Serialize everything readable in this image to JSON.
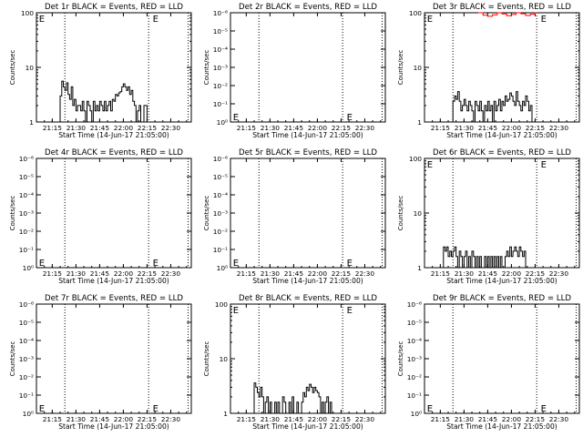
{
  "figure": {
    "background": "#ffffff",
    "ink_color": "#000000",
    "lld_color": "#ff0000"
  },
  "chart_data": [
    {
      "type": "line",
      "title": "Det 1r BLACK = Events, RED = LLD",
      "xlabel": "Start Time (14-Jun-17 21:05:00)",
      "ylabel": "Counts/sec",
      "yscale": "log",
      "ylim": [
        1,
        100
      ],
      "ytick_labels": [
        "1",
        "10",
        "100"
      ],
      "xlim": [
        "21:05",
        "22:43"
      ],
      "xtick_labels": [
        "21:15",
        "21:30",
        "21:45",
        "22:00",
        "22:15",
        "22:30"
      ],
      "markers": [
        {
          "label": "E",
          "x": "21:06"
        },
        {
          "label": "E",
          "x": "22:18"
        }
      ],
      "vlines": [
        "21:23",
        "22:16",
        "22:41"
      ],
      "series": [
        {
          "color": "#000000",
          "x": [
            "21:19",
            "21:20",
            "21:21",
            "21:22",
            "21:23",
            "21:24",
            "21:25",
            "21:26",
            "21:27",
            "21:28",
            "21:29",
            "21:30",
            "21:31",
            "21:32",
            "21:33",
            "21:34",
            "21:35",
            "21:36",
            "21:37",
            "21:38",
            "21:39",
            "21:40",
            "21:41",
            "21:42",
            "21:43",
            "21:44",
            "21:45",
            "21:46",
            "21:47",
            "21:48",
            "21:49",
            "21:50",
            "21:51",
            "21:52",
            "21:53",
            "21:54",
            "21:55",
            "21:56",
            "21:57",
            "21:58",
            "21:59",
            "22:00",
            "22:01",
            "22:02",
            "22:03",
            "22:04",
            "22:05",
            "22:06",
            "22:07",
            "22:08",
            "22:09",
            "22:10",
            "22:11",
            "22:12",
            "22:13",
            "22:14",
            "22:15",
            "22:16"
          ],
          "y": [
            1,
            3,
            5.6,
            4.4,
            3.8,
            5.2,
            3.2,
            2.6,
            4.4,
            2,
            2.6,
            1.6,
            2,
            2,
            1.6,
            2.4,
            1.6,
            1,
            2.4,
            2,
            1.6,
            1,
            2.4,
            1.6,
            2,
            1.6,
            2.4,
            2,
            1.6,
            2.4,
            1.6,
            2,
            2.4,
            1.6,
            2.6,
            2.4,
            3.2,
            3,
            3.4,
            3.6,
            4.4,
            5,
            4.4,
            3.8,
            4.4,
            3.2,
            3.8,
            2.4,
            2,
            1,
            1.6,
            2,
            1,
            1,
            2,
            2,
            1,
            1
          ]
        }
      ]
    },
    {
      "type": "line",
      "title": "Det 2r BLACK = Events, RED = LLD",
      "xlabel": "Start Time (14-Jun-17 21:05:00)",
      "ylabel": "Counts/sec",
      "yscale": "log",
      "ylim": [
        1,
        1e-06
      ],
      "ytick_labels": [
        "10⁰",
        "10⁻¹",
        "10⁻²",
        "10⁻³",
        "10⁻⁴",
        "10⁻⁵",
        "10⁻⁶"
      ],
      "xlim": [
        "21:05",
        "22:43"
      ],
      "xtick_labels": [
        "21:15",
        "21:30",
        "21:45",
        "22:00",
        "22:15",
        "22:30"
      ],
      "markers": [
        {
          "label": "E",
          "x": "21:06"
        },
        {
          "label": "E",
          "x": "22:18"
        }
      ],
      "vlines": [
        "21:23",
        "22:16",
        "22:41"
      ],
      "series": []
    },
    {
      "type": "line",
      "title": "Det 3r BLACK = Events, RED = LLD",
      "xlabel": "Start Time (14-Jun-17 21:05:00)",
      "ylabel": "Counts/sec",
      "yscale": "log",
      "ylim": [
        1,
        100
      ],
      "ytick_labels": [
        "1",
        "10",
        "100"
      ],
      "xlim": [
        "21:05",
        "22:43"
      ],
      "xtick_labels": [
        "21:15",
        "21:30",
        "21:45",
        "22:00",
        "22:15",
        "22:30"
      ],
      "markers": [
        {
          "label": "E",
          "x": "21:06"
        },
        {
          "label": "E",
          "x": "22:18"
        }
      ],
      "vlines": [
        "21:23",
        "22:16",
        "22:41"
      ],
      "series": [
        {
          "color": "#000000",
          "x": [
            "21:22",
            "21:23",
            "21:24",
            "21:25",
            "21:26",
            "21:27",
            "21:28",
            "21:29",
            "21:30",
            "21:31",
            "21:32",
            "21:33",
            "21:34",
            "21:35",
            "21:36",
            "21:37",
            "21:38",
            "21:39",
            "21:40",
            "21:41",
            "21:42",
            "21:43",
            "21:44",
            "21:45",
            "21:46",
            "21:47",
            "21:48",
            "21:49",
            "21:50",
            "21:51",
            "21:52",
            "21:53",
            "21:54",
            "21:55",
            "21:56",
            "21:57",
            "21:58",
            "21:59",
            "22:00",
            "22:01",
            "22:02",
            "22:03",
            "22:04",
            "22:05",
            "22:06",
            "22:07",
            "22:08",
            "22:09",
            "22:10",
            "22:11",
            "22:12",
            "22:13"
          ],
          "y": [
            1,
            2.4,
            3,
            2.6,
            3.6,
            2.4,
            1.6,
            2,
            2.6,
            2,
            1.6,
            2.4,
            2,
            1.6,
            1,
            2.4,
            2,
            1.6,
            2.4,
            1.6,
            1,
            2,
            1.6,
            2.4,
            1.6,
            2,
            1,
            2.4,
            1.6,
            2,
            2.6,
            1.6,
            2.4,
            2,
            3,
            2.4,
            2.6,
            3.4,
            3,
            2.4,
            2,
            3.6,
            2.4,
            2,
            1.6,
            2.4,
            2,
            3,
            2.4,
            1.6,
            2,
            1
          ]
        },
        {
          "color": "#ff0000",
          "x": [
            "21:39",
            "21:42",
            "21:45",
            "21:48",
            "21:51",
            "21:54",
            "21:57",
            "22:00",
            "22:03",
            "22:06",
            "22:09",
            "22:12",
            "22:15",
            "22:16"
          ],
          "y": [
            100,
            90,
            86,
            92,
            100,
            95,
            88,
            93,
            100,
            96,
            89,
            94,
            100,
            97
          ]
        }
      ]
    },
    {
      "type": "line",
      "title": "Det 4r BLACK = Events, RED = LLD",
      "xlabel": "Start Time (14-Jun-17 21:05:00)",
      "ylabel": "Counts/sec",
      "yscale": "log",
      "ylim": [
        1,
        1e-06
      ],
      "ytick_labels": [
        "10⁰",
        "10⁻¹",
        "10⁻²",
        "10⁻³",
        "10⁻⁴",
        "10⁻⁵",
        "10⁻⁶"
      ],
      "xlim": [
        "21:05",
        "22:43"
      ],
      "xtick_labels": [
        "21:15",
        "21:30",
        "21:45",
        "22:00",
        "22:15",
        "22:30"
      ],
      "markers": [
        {
          "label": "E",
          "x": "21:06"
        },
        {
          "label": "E",
          "x": "22:18"
        }
      ],
      "vlines": [
        "21:23",
        "22:16",
        "22:41"
      ],
      "series": []
    },
    {
      "type": "line",
      "title": "Det 5r BLACK = Events, RED = LLD",
      "xlabel": "Start Time (14-Jun-17 21:05:00)",
      "ylabel": "Counts/sec",
      "yscale": "log",
      "ylim": [
        1,
        1e-06
      ],
      "ytick_labels": [
        "10⁰",
        "10⁻¹",
        "10⁻²",
        "10⁻³",
        "10⁻⁴",
        "10⁻⁵",
        "10⁻⁶"
      ],
      "xlim": [
        "21:05",
        "22:43"
      ],
      "xtick_labels": [
        "21:15",
        "21:30",
        "21:45",
        "22:00",
        "22:15",
        "22:30"
      ],
      "markers": [
        {
          "label": "E",
          "x": "21:06"
        },
        {
          "label": "E",
          "x": "22:18"
        }
      ],
      "vlines": [
        "21:23",
        "22:16",
        "22:41"
      ],
      "series": []
    },
    {
      "type": "line",
      "title": "Det 6r BLACK = Events, RED = LLD",
      "xlabel": "Start Time (14-Jun-17 21:05:00)",
      "ylabel": "Counts/sec",
      "yscale": "log",
      "ylim": [
        1,
        100
      ],
      "ytick_labels": [
        "1",
        "10",
        "100"
      ],
      "xlim": [
        "21:05",
        "22:43"
      ],
      "xtick_labels": [
        "21:15",
        "21:30",
        "21:45",
        "22:00",
        "22:15",
        "22:30"
      ],
      "markers": [
        {
          "label": "E",
          "x": "21:06"
        },
        {
          "label": "E",
          "x": "22:18"
        }
      ],
      "vlines": [
        "21:23",
        "22:16",
        "22:41"
      ],
      "series": [
        {
          "color": "#000000",
          "x": [
            "21:16",
            "21:17",
            "21:18",
            "21:19",
            "21:20",
            "21:21",
            "21:22",
            "21:23",
            "21:24",
            "21:25",
            "21:26",
            "21:27",
            "21:28",
            "21:29",
            "21:30",
            "21:31",
            "21:32",
            "21:33",
            "21:34",
            "21:35",
            "21:36",
            "21:37",
            "21:38",
            "21:39",
            "21:40",
            "21:41",
            "21:42",
            "21:43",
            "21:44",
            "21:45",
            "21:46",
            "21:47",
            "21:48",
            "21:49",
            "21:50",
            "21:51",
            "21:52",
            "21:53",
            "21:54",
            "21:55",
            "21:56",
            "21:57",
            "21:58",
            "21:59",
            "22:00",
            "22:01",
            "22:02",
            "22:03",
            "22:04",
            "22:05",
            "22:06",
            "22:07",
            "22:08",
            "22:09",
            "22:10"
          ],
          "y": [
            1,
            2.4,
            2,
            2.4,
            1.6,
            2,
            1.6,
            2,
            2.4,
            1.6,
            1,
            2,
            1.6,
            1,
            1.6,
            2,
            1,
            1.6,
            1,
            2,
            1.6,
            1,
            1.6,
            1,
            1.6,
            1,
            1,
            1.6,
            1,
            1.6,
            1,
            1.6,
            1,
            1.6,
            1,
            1.6,
            1,
            1.6,
            1,
            1,
            1.6,
            2,
            1.6,
            2.4,
            1.6,
            2,
            2.4,
            2,
            1.6,
            2.4,
            2,
            1.6,
            2,
            1,
            1
          ]
        }
      ]
    },
    {
      "type": "line",
      "title": "Det 7r BLACK = Events, RED = LLD",
      "xlabel": "Start Time (14-Jun-17 21:05:00)",
      "ylabel": "Counts/sec",
      "yscale": "log",
      "ylim": [
        1,
        1e-06
      ],
      "ytick_labels": [
        "10⁰",
        "10⁻¹",
        "10⁻²",
        "10⁻³",
        "10⁻⁴",
        "10⁻⁵",
        "10⁻⁶"
      ],
      "xlim": [
        "21:05",
        "22:43"
      ],
      "xtick_labels": [
        "21:15",
        "21:30",
        "21:45",
        "22:00",
        "22:15",
        "22:30"
      ],
      "markers": [
        {
          "label": "E",
          "x": "21:06"
        },
        {
          "label": "E",
          "x": "22:18"
        }
      ],
      "vlines": [
        "21:23",
        "22:16",
        "22:41"
      ],
      "series": []
    },
    {
      "type": "line",
      "title": "Det 8r BLACK = Events, RED = LLD",
      "xlabel": "Start Time (14-Jun-17 21:05:00)",
      "ylabel": "Counts/sec",
      "yscale": "log",
      "ylim": [
        1,
        100
      ],
      "ytick_labels": [
        "1",
        "10",
        "100"
      ],
      "xlim": [
        "21:05",
        "22:43"
      ],
      "xtick_labels": [
        "21:15",
        "21:30",
        "21:45",
        "22:00",
        "22:15",
        "22:30"
      ],
      "markers": [
        {
          "label": "E",
          "x": "21:06"
        },
        {
          "label": "E",
          "x": "22:18"
        }
      ],
      "vlines": [
        "21:23",
        "22:16",
        "22:41"
      ],
      "series": [
        {
          "color": "#000000",
          "x": [
            "21:19",
            "21:20",
            "21:21",
            "21:22",
            "21:23",
            "21:24",
            "21:25",
            "21:26",
            "21:27",
            "21:28",
            "21:29",
            "21:30",
            "21:31",
            "21:32",
            "21:33",
            "21:34",
            "21:35",
            "21:36",
            "21:37",
            "21:38",
            "21:39",
            "21:40",
            "21:41",
            "21:42",
            "21:43",
            "21:44",
            "21:45",
            "21:46",
            "21:47",
            "21:48",
            "21:49",
            "21:50",
            "21:51",
            "21:52",
            "21:53",
            "21:54",
            "21:55",
            "21:56",
            "21:57",
            "21:58",
            "21:59",
            "22:00",
            "22:01",
            "22:02",
            "22:03",
            "22:04",
            "22:05",
            "22:06",
            "22:07",
            "22:08",
            "22:09",
            "22:10"
          ],
          "y": [
            1,
            3.6,
            3,
            2.4,
            2,
            3,
            2,
            1,
            1.6,
            2,
            1,
            1.6,
            1,
            1,
            1.6,
            1,
            1.6,
            1,
            1,
            2,
            1.6,
            1,
            1,
            1.6,
            1,
            2,
            1,
            1,
            1.6,
            1,
            1,
            1.6,
            2.4,
            2,
            3,
            2.6,
            3.4,
            3,
            2.4,
            3,
            2.6,
            2.4,
            2,
            1,
            1.6,
            1,
            1.6,
            2,
            1,
            1.6,
            1,
            1
          ]
        }
      ]
    },
    {
      "type": "line",
      "title": "Det 9r BLACK = Events, RED = LLD",
      "xlabel": "Start Time (14-Jun-17 21:05:00)",
      "ylabel": "Counts/sec",
      "yscale": "log",
      "ylim": [
        1,
        1e-06
      ],
      "ytick_labels": [
        "10⁰",
        "10⁻¹",
        "10⁻²",
        "10⁻³",
        "10⁻⁴",
        "10⁻⁵",
        "10⁻⁶"
      ],
      "xlim": [
        "21:05",
        "22:43"
      ],
      "xtick_labels": [
        "21:15",
        "21:30",
        "21:45",
        "22:00",
        "22:15",
        "22:30"
      ],
      "markers": [
        {
          "label": "E",
          "x": "21:06"
        },
        {
          "label": "E",
          "x": "22:18"
        }
      ],
      "vlines": [
        "21:23",
        "22:16",
        "22:41"
      ],
      "series": []
    }
  ]
}
